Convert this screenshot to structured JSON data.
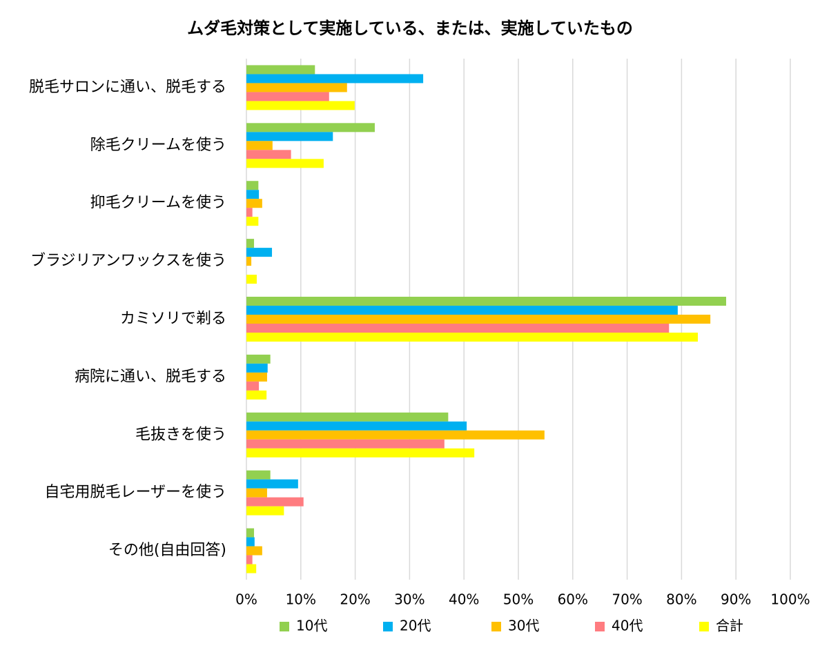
{
  "chart_data": {
    "type": "hbar",
    "title": "ムダ毛対策として実施している、または、実施していたもの",
    "categories": [
      "脱毛サロンに通い、脱毛する",
      "除毛クリームを使う",
      "抑毛クリームを使う",
      "ブラジリアンワックスを使う",
      "カミソリで剃る",
      "病院に通い、脱毛する",
      "毛抜きを使う",
      "自宅用脱毛レーザーを使う",
      "その他(自由回答)"
    ],
    "series": [
      {
        "name": "10代",
        "color": "#92d050",
        "values": [
          12.6,
          23.6,
          2.2,
          1.4,
          88.2,
          4.4,
          37.1,
          4.4,
          1.4
        ]
      },
      {
        "name": "20代",
        "color": "#00b0f0",
        "values": [
          32.5,
          15.9,
          2.3,
          4.7,
          79.3,
          3.9,
          40.5,
          9.5,
          1.5
        ]
      },
      {
        "name": "30代",
        "color": "#ffc000",
        "values": [
          18.5,
          4.8,
          2.9,
          0.9,
          85.3,
          3.8,
          54.8,
          3.8,
          2.9
        ]
      },
      {
        "name": "40代",
        "color": "#ff7c80",
        "values": [
          15.2,
          8.2,
          1.1,
          0,
          77.7,
          2.3,
          36.4,
          10.5,
          1.1
        ]
      },
      {
        "name": "合計",
        "color": "#ffff00",
        "values": [
          19.9,
          14.2,
          2.2,
          1.9,
          83.0,
          3.7,
          41.9,
          6.9,
          1.8
        ]
      }
    ],
    "xlim": [
      0,
      100
    ],
    "xticks": [
      {
        "value": 0,
        "label": "0%"
      },
      {
        "value": 10,
        "label": "10%"
      },
      {
        "value": 20,
        "label": "20%"
      },
      {
        "value": 30,
        "label": "30%"
      },
      {
        "value": 40,
        "label": "40%"
      },
      {
        "value": 50,
        "label": "50%"
      },
      {
        "value": 60,
        "label": "60%"
      },
      {
        "value": 70,
        "label": "70%"
      },
      {
        "value": 80,
        "label": "80%"
      },
      {
        "value": 90,
        "label": "90%"
      },
      {
        "value": 100,
        "label": "100%"
      }
    ],
    "grid": true,
    "legend": "bottom"
  }
}
